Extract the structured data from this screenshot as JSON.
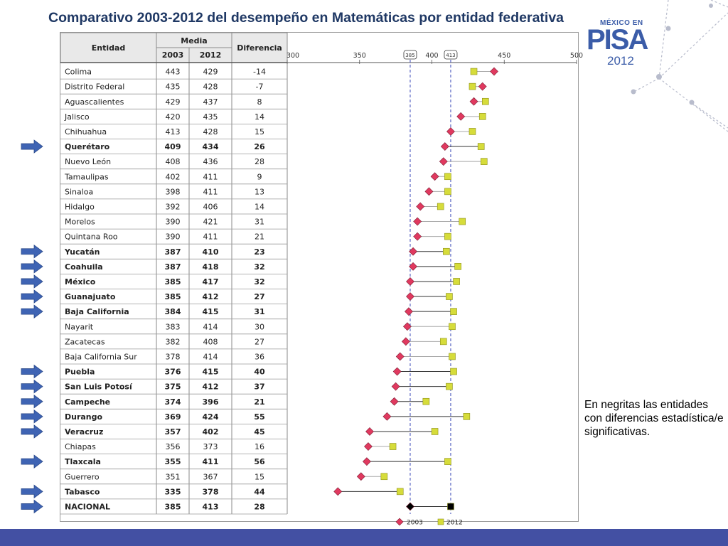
{
  "title": "Comparativo 2003-2012 del  desempeño en Matemáticas por entidad federativa",
  "logo": {
    "top": "MÉXICO EN",
    "main": "PISA",
    "year": "2012"
  },
  "note": "En negritas las entidades con diferencias estadística/e significativas.",
  "table": {
    "header_entidad": "Entidad",
    "header_media": "Media",
    "header_2003": "2003",
    "header_2012": "2012",
    "header_diferencia": "Diferencia"
  },
  "colors": {
    "series_2003": "#e0395f",
    "series_2012": "#d6dc3a",
    "national": "#000000",
    "accent": "#4350a3",
    "arrow": "#3f64b4"
  },
  "chart_data": {
    "type": "dot-plot",
    "x_ticks": [
      "300",
      "350",
      "385",
      "400",
      "413",
      "450",
      "500"
    ],
    "xlim": [
      300,
      500
    ],
    "reference_lines": [
      {
        "label": "385",
        "value": 385
      },
      {
        "label": "413",
        "value": 413
      }
    ],
    "legend": [
      "2003",
      "2012"
    ],
    "series": [
      {
        "name": "2003"
      },
      {
        "name": "2012"
      }
    ],
    "rows": [
      {
        "entidad": "Colima",
        "y2003": 443,
        "y2012": 429,
        "diferencia": "-14",
        "bold": false,
        "arrow": false
      },
      {
        "entidad": "Distrito Federal",
        "y2003": 435,
        "y2012": 428,
        "diferencia": "-7",
        "bold": false,
        "arrow": false
      },
      {
        "entidad": "Aguascalientes",
        "y2003": 429,
        "y2012": 437,
        "diferencia": "8",
        "bold": false,
        "arrow": false
      },
      {
        "entidad": "Jalisco",
        "y2003": 420,
        "y2012": 435,
        "diferencia": "14",
        "bold": false,
        "arrow": false
      },
      {
        "entidad": "Chihuahua",
        "y2003": 413,
        "y2012": 428,
        "diferencia": "15",
        "bold": false,
        "arrow": false
      },
      {
        "entidad": "Querétaro",
        "y2003": 409,
        "y2012": 434,
        "diferencia": "26",
        "bold": true,
        "arrow": true
      },
      {
        "entidad": "Nuevo León",
        "y2003": 408,
        "y2012": 436,
        "diferencia": "28",
        "bold": false,
        "arrow": false
      },
      {
        "entidad": "Tamaulipas",
        "y2003": 402,
        "y2012": 411,
        "diferencia": "9",
        "bold": false,
        "arrow": false
      },
      {
        "entidad": "Sinaloa",
        "y2003": 398,
        "y2012": 411,
        "diferencia": "13",
        "bold": false,
        "arrow": false
      },
      {
        "entidad": "Hidalgo",
        "y2003": 392,
        "y2012": 406,
        "diferencia": "14",
        "bold": false,
        "arrow": false
      },
      {
        "entidad": "Morelos",
        "y2003": 390,
        "y2012": 421,
        "diferencia": "31",
        "bold": false,
        "arrow": false
      },
      {
        "entidad": "Quintana Roo",
        "y2003": 390,
        "y2012": 411,
        "diferencia": "21",
        "bold": false,
        "arrow": false
      },
      {
        "entidad": "Yucatán",
        "y2003": 387,
        "y2012": 410,
        "diferencia": "23",
        "bold": true,
        "arrow": true
      },
      {
        "entidad": "Coahuila",
        "y2003": 387,
        "y2012": 418,
        "diferencia": "32",
        "bold": true,
        "arrow": true
      },
      {
        "entidad": "México",
        "y2003": 385,
        "y2012": 417,
        "diferencia": "32",
        "bold": true,
        "arrow": true
      },
      {
        "entidad": "Guanajuato",
        "y2003": 385,
        "y2012": 412,
        "diferencia": "27",
        "bold": true,
        "arrow": true
      },
      {
        "entidad": "Baja California",
        "y2003": 384,
        "y2012": 415,
        "diferencia": "31",
        "bold": true,
        "arrow": true
      },
      {
        "entidad": "Nayarit",
        "y2003": 383,
        "y2012": 414,
        "diferencia": "30",
        "bold": false,
        "arrow": false
      },
      {
        "entidad": "Zacatecas",
        "y2003": 382,
        "y2012": 408,
        "diferencia": "27",
        "bold": false,
        "arrow": false
      },
      {
        "entidad": "Baja California Sur",
        "y2003": 378,
        "y2012": 414,
        "diferencia": "36",
        "bold": false,
        "arrow": false
      },
      {
        "entidad": "Puebla",
        "y2003": 376,
        "y2012": 415,
        "diferencia": "40",
        "bold": true,
        "arrow": true
      },
      {
        "entidad": "San Luis Potosí",
        "y2003": 375,
        "y2012": 412,
        "diferencia": "37",
        "bold": true,
        "arrow": true
      },
      {
        "entidad": "Campeche",
        "y2003": 374,
        "y2012": 396,
        "diferencia": "21",
        "bold": true,
        "arrow": true
      },
      {
        "entidad": "Durango",
        "y2003": 369,
        "y2012": 424,
        "diferencia": "55",
        "bold": true,
        "arrow": true
      },
      {
        "entidad": "Veracruz",
        "y2003": 357,
        "y2012": 402,
        "diferencia": "45",
        "bold": true,
        "arrow": true
      },
      {
        "entidad": "Chiapas",
        "y2003": 356,
        "y2012": 373,
        "diferencia": "16",
        "bold": false,
        "arrow": false
      },
      {
        "entidad": "Tlaxcala",
        "y2003": 355,
        "y2012": 411,
        "diferencia": "56",
        "bold": true,
        "arrow": true
      },
      {
        "entidad": "Guerrero",
        "y2003": 351,
        "y2012": 367,
        "diferencia": "15",
        "bold": false,
        "arrow": false
      },
      {
        "entidad": "Tabasco",
        "y2003": 335,
        "y2012": 378,
        "diferencia": "44",
        "bold": true,
        "arrow": true
      },
      {
        "entidad": "NACIONAL",
        "y2003": 385,
        "y2012": 413,
        "diferencia": "28",
        "bold": true,
        "arrow": true,
        "national": true
      }
    ]
  }
}
